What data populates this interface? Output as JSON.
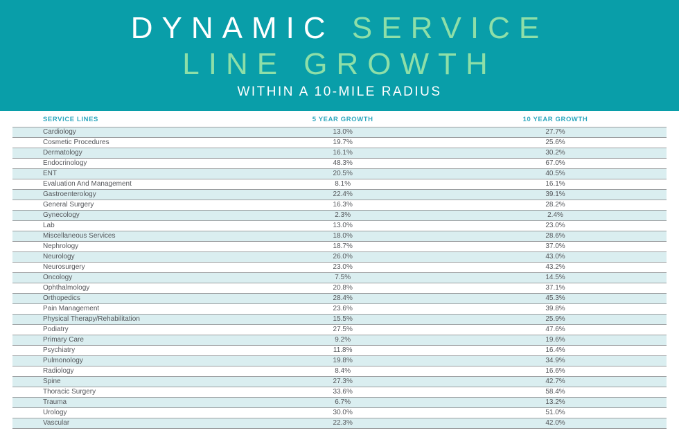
{
  "banner": {
    "title_line1_white": "DYNAMIC",
    "title_line1_mint": "SERVICE",
    "title_line2": "LINE GROWTH",
    "subtitle": "WITHIN A 10-MILE RADIUS"
  },
  "table": {
    "columns": [
      "SERVICE LINES",
      "5 YEAR GROWTH",
      "10 YEAR GROWTH"
    ],
    "rows": [
      [
        "Cardiology",
        "13.0%",
        "27.7%"
      ],
      [
        "Cosmetic Procedures",
        "19.7%",
        "25.6%"
      ],
      [
        "Dermatology",
        "16.1%",
        "30.2%"
      ],
      [
        "Endocrinology",
        "48.3%",
        "67.0%"
      ],
      [
        "ENT",
        "20.5%",
        "40.5%"
      ],
      [
        "Evaluation And Management",
        "8.1%",
        "16.1%"
      ],
      [
        "Gastroenterology",
        "22.4%",
        "39.1%"
      ],
      [
        "General Surgery",
        "16.3%",
        "28.2%"
      ],
      [
        "Gynecology",
        "2.3%",
        "2.4%"
      ],
      [
        "Lab",
        "13.0%",
        "23.0%"
      ],
      [
        "Miscellaneous Services",
        "18.0%",
        "28.6%"
      ],
      [
        "Nephrology",
        "18.7%",
        "37.0%"
      ],
      [
        "Neurology",
        "26.0%",
        "43.0%"
      ],
      [
        "Neurosurgery",
        "23.0%",
        "43.2%"
      ],
      [
        "Oncology",
        "7.5%",
        "14.5%"
      ],
      [
        "Ophthalmology",
        "20.8%",
        "37.1%"
      ],
      [
        "Orthopedics",
        "28.4%",
        "45.3%"
      ],
      [
        "Pain Management",
        "23.6%",
        "39.8%"
      ],
      [
        "Physical Therapy/Rehabilitation",
        "15.5%",
        "25.9%"
      ],
      [
        "Podiatry",
        "27.5%",
        "47.6%"
      ],
      [
        "Primary Care",
        "9.2%",
        "19.6%"
      ],
      [
        "Psychiatry",
        "11.8%",
        "16.4%"
      ],
      [
        "Pulmonology",
        "19.8%",
        "34.9%"
      ],
      [
        "Radiology",
        "8.4%",
        "16.6%"
      ],
      [
        "Spine",
        "27.3%",
        "42.7%"
      ],
      [
        "Thoracic Surgery",
        "33.6%",
        "58.4%"
      ],
      [
        "Trauma",
        "6.7%",
        "13.2%"
      ],
      [
        "Urology",
        "30.0%",
        "51.0%"
      ],
      [
        "Vascular",
        "22.3%",
        "42.0%"
      ]
    ]
  },
  "colors": {
    "banner_bg": "#099EA9",
    "mint_accent": "#8EDFA8",
    "column_header_text": "#2EA7BE",
    "row_alt_bg": "#DAEEF0",
    "row_border": "#9B9EA0",
    "row_text": "#54565A"
  },
  "chart_data": {
    "type": "table",
    "title": "DYNAMIC SERVICE LINE GROWTH",
    "subtitle": "WITHIN A 10-MILE RADIUS",
    "columns": [
      "SERVICE LINES",
      "5 YEAR GROWTH",
      "10 YEAR GROWTH"
    ],
    "rows": [
      {
        "service_line": "Cardiology",
        "five_year_growth_pct": 13.0,
        "ten_year_growth_pct": 27.7
      },
      {
        "service_line": "Cosmetic Procedures",
        "five_year_growth_pct": 19.7,
        "ten_year_growth_pct": 25.6
      },
      {
        "service_line": "Dermatology",
        "five_year_growth_pct": 16.1,
        "ten_year_growth_pct": 30.2
      },
      {
        "service_line": "Endocrinology",
        "five_year_growth_pct": 48.3,
        "ten_year_growth_pct": 67.0
      },
      {
        "service_line": "ENT",
        "five_year_growth_pct": 20.5,
        "ten_year_growth_pct": 40.5
      },
      {
        "service_line": "Evaluation And Management",
        "five_year_growth_pct": 8.1,
        "ten_year_growth_pct": 16.1
      },
      {
        "service_line": "Gastroenterology",
        "five_year_growth_pct": 22.4,
        "ten_year_growth_pct": 39.1
      },
      {
        "service_line": "General Surgery",
        "five_year_growth_pct": 16.3,
        "ten_year_growth_pct": 28.2
      },
      {
        "service_line": "Gynecology",
        "five_year_growth_pct": 2.3,
        "ten_year_growth_pct": 2.4
      },
      {
        "service_line": "Lab",
        "five_year_growth_pct": 13.0,
        "ten_year_growth_pct": 23.0
      },
      {
        "service_line": "Miscellaneous Services",
        "five_year_growth_pct": 18.0,
        "ten_year_growth_pct": 28.6
      },
      {
        "service_line": "Nephrology",
        "five_year_growth_pct": 18.7,
        "ten_year_growth_pct": 37.0
      },
      {
        "service_line": "Neurology",
        "five_year_growth_pct": 26.0,
        "ten_year_growth_pct": 43.0
      },
      {
        "service_line": "Neurosurgery",
        "five_year_growth_pct": 23.0,
        "ten_year_growth_pct": 43.2
      },
      {
        "service_line": "Oncology",
        "five_year_growth_pct": 7.5,
        "ten_year_growth_pct": 14.5
      },
      {
        "service_line": "Ophthalmology",
        "five_year_growth_pct": 20.8,
        "ten_year_growth_pct": 37.1
      },
      {
        "service_line": "Orthopedics",
        "five_year_growth_pct": 28.4,
        "ten_year_growth_pct": 45.3
      },
      {
        "service_line": "Pain Management",
        "five_year_growth_pct": 23.6,
        "ten_year_growth_pct": 39.8
      },
      {
        "service_line": "Physical Therapy/Rehabilitation",
        "five_year_growth_pct": 15.5,
        "ten_year_growth_pct": 25.9
      },
      {
        "service_line": "Podiatry",
        "five_year_growth_pct": 27.5,
        "ten_year_growth_pct": 47.6
      },
      {
        "service_line": "Primary Care",
        "five_year_growth_pct": 9.2,
        "ten_year_growth_pct": 19.6
      },
      {
        "service_line": "Psychiatry",
        "five_year_growth_pct": 11.8,
        "ten_year_growth_pct": 16.4
      },
      {
        "service_line": "Pulmonology",
        "five_year_growth_pct": 19.8,
        "ten_year_growth_pct": 34.9
      },
      {
        "service_line": "Radiology",
        "five_year_growth_pct": 8.4,
        "ten_year_growth_pct": 16.6
      },
      {
        "service_line": "Spine",
        "five_year_growth_pct": 27.3,
        "ten_year_growth_pct": 42.7
      },
      {
        "service_line": "Thoracic Surgery",
        "five_year_growth_pct": 33.6,
        "ten_year_growth_pct": 58.4
      },
      {
        "service_line": "Trauma",
        "five_year_growth_pct": 6.7,
        "ten_year_growth_pct": 13.2
      },
      {
        "service_line": "Urology",
        "five_year_growth_pct": 30.0,
        "ten_year_growth_pct": 51.0
      },
      {
        "service_line": "Vascular",
        "five_year_growth_pct": 22.3,
        "ten_year_growth_pct": 42.0
      }
    ]
  }
}
